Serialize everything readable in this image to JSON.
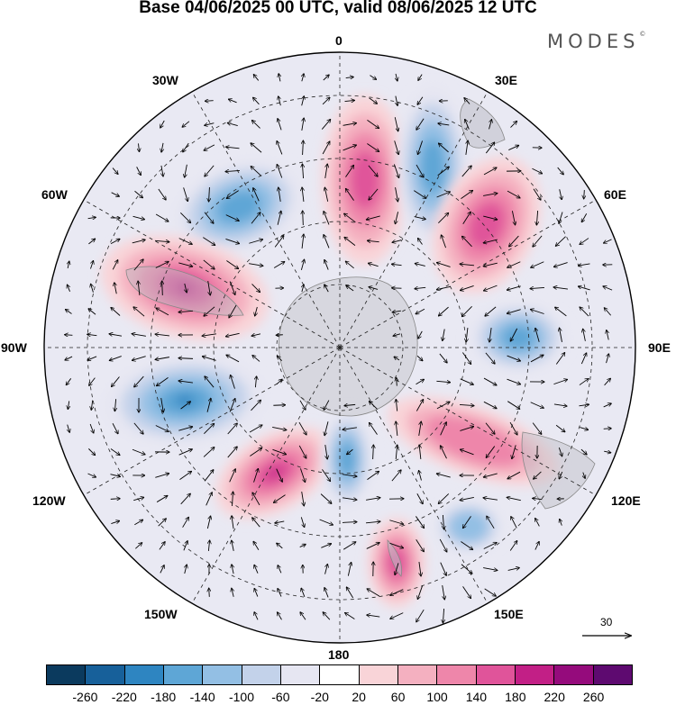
{
  "title": "Base 04/06/2025 00 UTC, valid 08/06/2025 12 UTC",
  "brand": "MODES",
  "brand_mark": "©",
  "longitude_labels": {
    "top": "0",
    "bottom": "180",
    "left": "90W",
    "right": "90E",
    "upper_left_1": "30W",
    "upper_left_2": "60W",
    "upper_right_1": "30E",
    "upper_right_2": "60E",
    "lower_left_1": "120W",
    "lower_left_2": "150W",
    "lower_right_1": "120E",
    "lower_right_2": "150E"
  },
  "wind_scale_label": "30",
  "colorbar": {
    "colors": [
      "#0b3a5e",
      "#17609a",
      "#2e85c1",
      "#5ea6d6",
      "#93bfe4",
      "#c3d2ea",
      "#e6e6f2",
      "#ffffff",
      "#f9d4d8",
      "#f4b0c0",
      "#ee86aa",
      "#e0549a",
      "#c21f86",
      "#950b7c",
      "#5e0a70"
    ],
    "tick_labels": [
      "-260",
      "-220",
      "-180",
      "-140",
      "-100",
      "-60",
      "-20",
      "20",
      "60",
      "100",
      "140",
      "180",
      "220",
      "260"
    ]
  },
  "anomaly_centers": [
    {
      "sign": "positive",
      "strength": 2
    },
    {
      "sign": "negative",
      "strength": 2
    },
    {
      "sign": "negative",
      "strength": 2
    },
    {
      "sign": "positive",
      "strength": 3
    },
    {
      "sign": "negative",
      "strength": 3
    },
    {
      "sign": "positive",
      "strength": 3
    },
    {
      "sign": "negative",
      "strength": 2
    },
    {
      "sign": "positive",
      "strength": 2
    },
    {
      "sign": "negative",
      "strength": 2
    },
    {
      "sign": "positive",
      "strength": 1
    },
    {
      "sign": "negative",
      "strength": 1
    },
    {
      "sign": "positive",
      "strength": 2
    }
  ]
}
